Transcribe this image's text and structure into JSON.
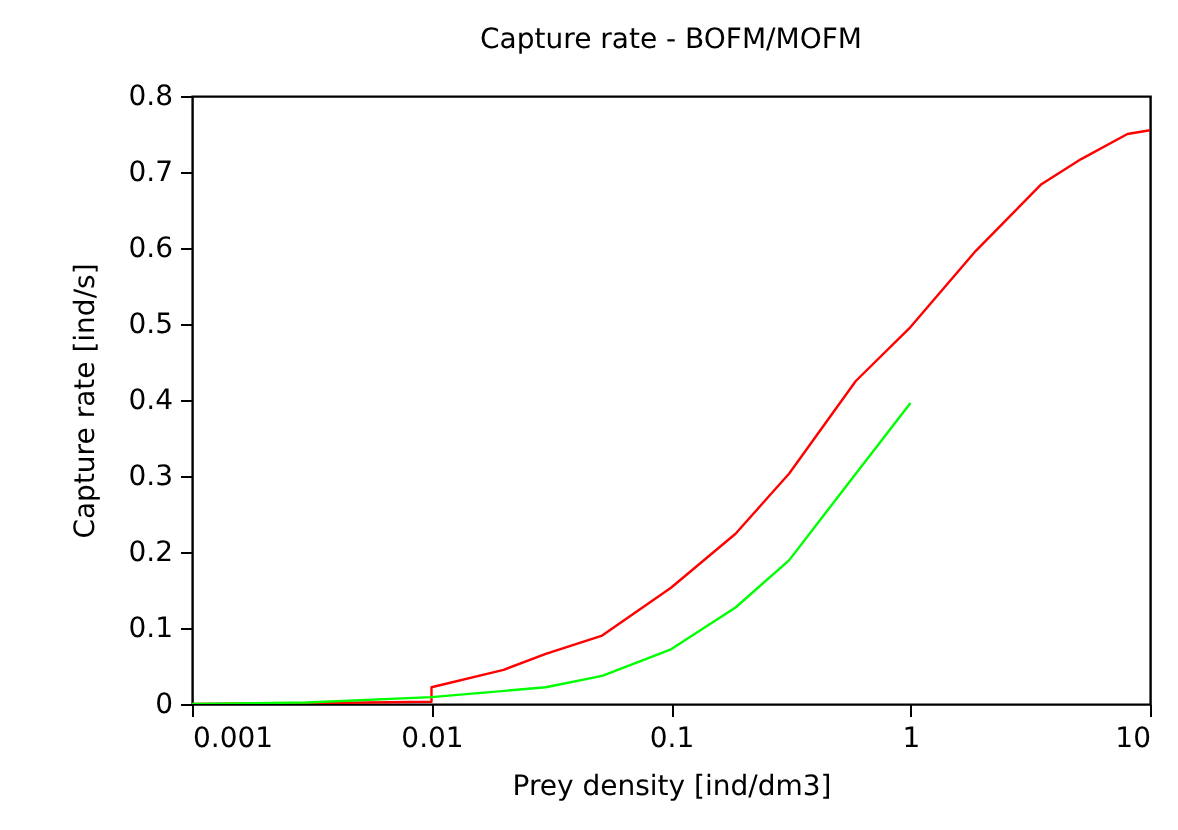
{
  "chart_data": {
    "type": "line",
    "title": "Capture rate - BOFM/MOFM",
    "xlabel": "Prey density [ind/dm3]",
    "ylabel": "Capture rate [ind/s]",
    "log": "x",
    "xlim": [
      0.001,
      10
    ],
    "xticks": [
      0.001,
      0.01,
      0.1,
      1,
      10
    ],
    "ylim": [
      0,
      0.8
    ],
    "yticks": [
      0,
      0.1,
      0.2,
      0.3,
      0.4,
      0.5,
      0.6,
      0.7,
      0.8
    ],
    "grid": false,
    "legend": false,
    "marker": "none",
    "line_style": "solid",
    "series": [
      {
        "color": "#ff0000",
        "x": [
          0.001,
          0.003,
          0.01,
          0.01,
          0.02,
          0.03,
          0.0516,
          0.1,
          0.186,
          0.311,
          0.591,
          1,
          1.87,
          3.52,
          5.16,
          8.05,
          10
        ],
        "values": [
          0,
          0.001,
          0.003,
          0.022,
          0.045,
          0.066,
          0.09,
          0.153,
          0.224,
          0.303,
          0.425,
          0.496,
          0.596,
          0.684,
          0.717,
          0.75,
          0.755
        ]
      },
      {
        "color": "#00ff00",
        "x": [
          0.001,
          0.003,
          0.01,
          0.03,
          0.0516,
          0.1,
          0.186,
          0.311,
          0.591,
          1
        ],
        "values": [
          0,
          0.002,
          0.009,
          0.022,
          0.037,
          0.072,
          0.127,
          0.189,
          0.303,
          0.396
        ]
      }
    ]
  }
}
